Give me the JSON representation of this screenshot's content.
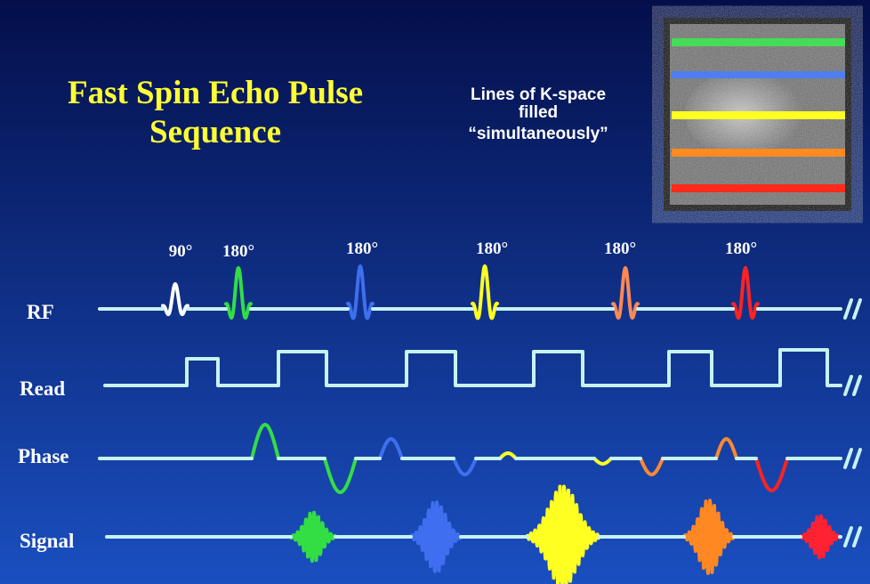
{
  "title": [
    "Fast Spin Echo Pulse",
    "Sequence"
  ],
  "kspace_note": [
    "Lines of K-space",
    "filled",
    "“simultaneously”"
  ],
  "pulse_labels": [
    "90°",
    "180°",
    "180°",
    "180°",
    "180°",
    "180°"
  ],
  "rows": [
    "RF",
    "Read",
    "Phase",
    "Signal"
  ]
}
